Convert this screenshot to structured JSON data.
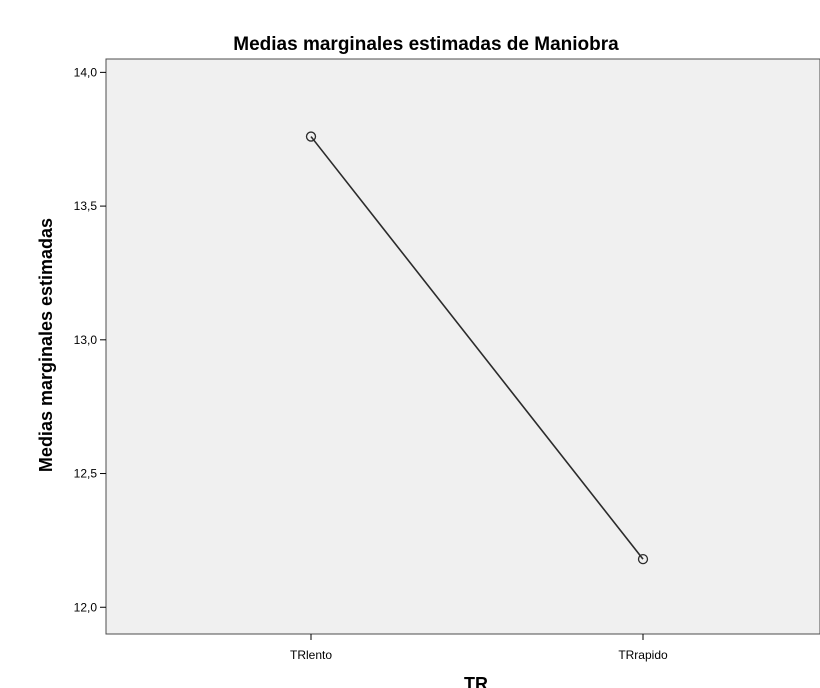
{
  "chart_data": {
    "type": "line",
    "title": "Medias marginales estimadas de Maniobra",
    "xlabel": "TR",
    "ylabel": "Medias marginales estimadas",
    "categories": [
      "TRlento",
      "TRrapido"
    ],
    "series": [
      {
        "values": [
          13.76,
          12.18
        ]
      }
    ],
    "ylim": [
      11.9,
      14.05
    ],
    "yticks": [
      "12,0",
      "12,5",
      "13,0",
      "13,5",
      "14,0"
    ],
    "ytick_values": [
      12.0,
      12.5,
      13.0,
      13.5,
      14.0
    ],
    "grid": false,
    "marker": "open-circle",
    "colors": {
      "plot_background": "#f0f0f0",
      "line": "#2b2b2b",
      "frame": "#4d4d4d",
      "marker_stroke": "#2b2b2b"
    }
  }
}
